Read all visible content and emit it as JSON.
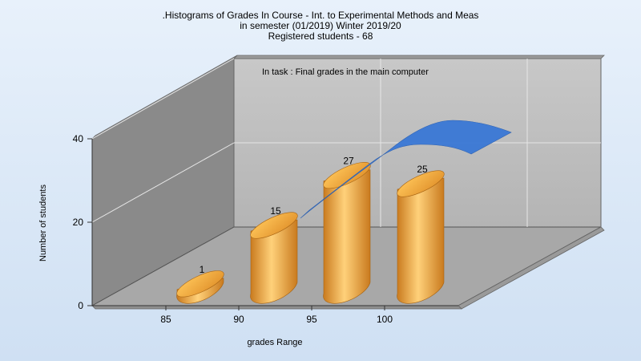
{
  "chart_data": {
    "type": "bar",
    "title_lines": [
      ".Histograms of Grades  In Course - Int. to Experimental Methods and Meas",
      "in semester  (01/2019) Winter 2019/20",
      "Registered students - 68"
    ],
    "annotation": "In task : Final grades in the main computer",
    "xlabel": "grades Range",
    "ylabel": "Number of students",
    "categories": [
      "85",
      "90",
      "95",
      "100"
    ],
    "values": [
      1,
      15,
      27,
      25
    ],
    "trend_line": {
      "color": "#3a78d6"
    },
    "y_ticks": [
      0,
      20,
      40
    ],
    "ylim": [
      0,
      40
    ],
    "x_tick_labels": [
      "85",
      "90",
      "95",
      "100"
    ],
    "bar_color": "#f2a93b",
    "grid": true,
    "style": "3d"
  }
}
